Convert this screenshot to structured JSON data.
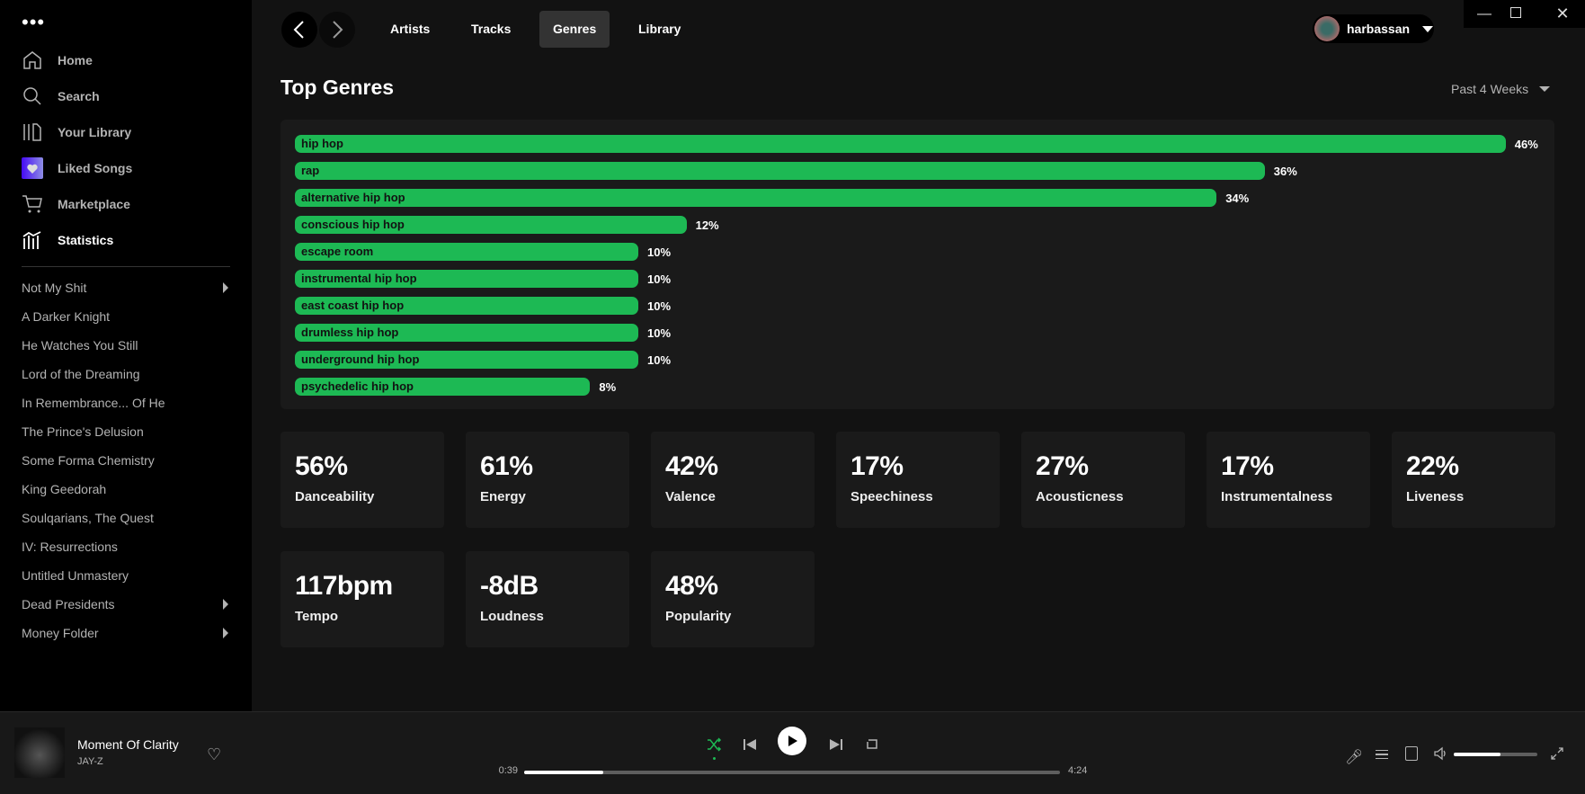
{
  "sidebar": {
    "menu_icon": "more-dots",
    "nav": [
      {
        "label": "Home",
        "icon": "home"
      },
      {
        "label": "Search",
        "icon": "search"
      },
      {
        "label": "Your Library",
        "icon": "library"
      },
      {
        "label": "Liked Songs",
        "icon": "heart"
      },
      {
        "label": "Marketplace",
        "icon": "cart"
      },
      {
        "label": "Statistics",
        "icon": "stats",
        "active": true
      }
    ],
    "playlists": [
      {
        "label": "Not My Shit",
        "folder": true
      },
      {
        "label": "A Darker Knight"
      },
      {
        "label": "He Watches You Still"
      },
      {
        "label": "Lord of the Dreaming"
      },
      {
        "label": "In Remembrance... Of He"
      },
      {
        "label": "The Prince's Delusion"
      },
      {
        "label": "Some Forma Chemistry"
      },
      {
        "label": "King Geedorah"
      },
      {
        "label": "Soulqarians, The Quest"
      },
      {
        "label": "IV: Resurrections"
      },
      {
        "label": "Untitled Unmastery"
      },
      {
        "label": "Dead Presidents",
        "folder": true
      },
      {
        "label": "Money Folder",
        "folder": true
      }
    ]
  },
  "header": {
    "tabs": [
      "Artists",
      "Tracks",
      "Genres",
      "Library"
    ],
    "active_tab": "Genres",
    "user": "harbassan"
  },
  "main": {
    "title": "Top Genres",
    "range": "Past 4 Weeks",
    "genres": [
      {
        "name": "hip hop",
        "pct": 46,
        "label": "46%"
      },
      {
        "name": "rap",
        "pct": 36,
        "label": "36%"
      },
      {
        "name": "alternative hip hop",
        "pct": 34,
        "label": "34%"
      },
      {
        "name": "conscious hip hop",
        "pct": 12,
        "label": "12%"
      },
      {
        "name": "escape room",
        "pct": 10,
        "label": "10%"
      },
      {
        "name": "instrumental hip hop",
        "pct": 10,
        "label": "10%"
      },
      {
        "name": "east coast hip hop",
        "pct": 10,
        "label": "10%"
      },
      {
        "name": "drumless hip hop",
        "pct": 10,
        "label": "10%"
      },
      {
        "name": "underground hip hop",
        "pct": 10,
        "label": "10%"
      },
      {
        "name": "psychedelic hip hop",
        "pct": 8,
        "label": "8%"
      }
    ],
    "stats": [
      {
        "value": "56%",
        "label": "Danceability"
      },
      {
        "value": "61%",
        "label": "Energy"
      },
      {
        "value": "42%",
        "label": "Valence"
      },
      {
        "value": "17%",
        "label": "Speechiness"
      },
      {
        "value": "27%",
        "label": "Acousticness"
      },
      {
        "value": "17%",
        "label": "Instrumentalness"
      },
      {
        "value": "22%",
        "label": "Liveness"
      },
      {
        "value": "117bpm",
        "label": "Tempo"
      },
      {
        "value": "-8dB",
        "label": "Loudness"
      },
      {
        "value": "48%",
        "label": "Popularity"
      }
    ]
  },
  "player": {
    "title": "Moment Of Clarity",
    "artist": "JAY-Z",
    "elapsed": "0:39",
    "duration": "4:24",
    "progress": 0.148,
    "volume": 0.56,
    "shuffle_on": true
  },
  "colors": {
    "accent": "#1db954",
    "bg": "#121212",
    "sidebar": "#000000"
  }
}
